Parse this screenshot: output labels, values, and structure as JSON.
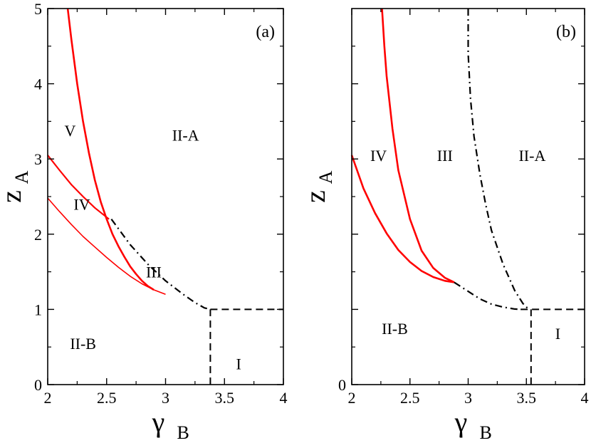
{
  "chart_data": [
    {
      "type": "line",
      "panel_label": "(a)",
      "xlabel": {
        "main": "γ",
        "sub": "B"
      },
      "ylabel": {
        "main": "z",
        "sub": "A"
      },
      "xlim": [
        2,
        4
      ],
      "ylim": [
        0,
        5
      ],
      "x_ticks": [
        2,
        2.5,
        3,
        3.5,
        4
      ],
      "x_tick_labels": [
        "2",
        "2.5",
        "3",
        "3.5",
        "4"
      ],
      "y_ticks": [
        0,
        1,
        2,
        3,
        4,
        5
      ],
      "y_tick_labels": [
        "0",
        "1",
        "2",
        "3",
        "4",
        "5"
      ],
      "grid": false,
      "legend": "none",
      "series": [
        {
          "style": "solid",
          "color": "#ff0000",
          "width": 2.6,
          "points": [
            [
              2.17,
              5.0
            ],
            [
              2.2,
              4.6
            ],
            [
              2.25,
              4.0
            ],
            [
              2.3,
              3.5
            ],
            [
              2.35,
              3.08
            ],
            [
              2.4,
              2.72
            ],
            [
              2.45,
              2.43
            ],
            [
              2.5,
              2.2
            ],
            [
              2.55,
              2.0
            ],
            [
              2.6,
              1.84
            ],
            [
              2.65,
              1.7
            ],
            [
              2.7,
              1.57
            ],
            [
              2.75,
              1.47
            ],
            [
              2.8,
              1.38
            ],
            [
              2.85,
              1.31
            ],
            [
              2.9,
              1.26
            ]
          ]
        },
        {
          "style": "solid",
          "color": "#ff0000",
          "width": 2.2,
          "points": [
            [
              2.0,
              3.05
            ],
            [
              2.1,
              2.85
            ],
            [
              2.2,
              2.66
            ],
            [
              2.3,
              2.5
            ],
            [
              2.4,
              2.35
            ],
            [
              2.52,
              2.2
            ]
          ]
        },
        {
          "style": "solid",
          "color": "#ff0000",
          "width": 1.6,
          "points": [
            [
              2.0,
              2.48
            ],
            [
              2.1,
              2.3
            ],
            [
              2.2,
              2.13
            ],
            [
              2.3,
              1.97
            ],
            [
              2.4,
              1.83
            ],
            [
              2.5,
              1.69
            ],
            [
              2.6,
              1.56
            ],
            [
              2.7,
              1.44
            ],
            [
              2.8,
              1.34
            ],
            [
              2.9,
              1.26
            ],
            [
              3.0,
              1.2
            ]
          ]
        },
        {
          "style": "dashdot",
          "color": "#000000",
          "width": 2.2,
          "points": [
            [
              2.54,
              2.2
            ],
            [
              2.7,
              1.86
            ],
            [
              2.85,
              1.6
            ],
            [
              3.0,
              1.38
            ],
            [
              3.15,
              1.2
            ],
            [
              3.25,
              1.09
            ],
            [
              3.33,
              1.02
            ],
            [
              3.38,
              1.0
            ]
          ]
        },
        {
          "style": "dashed",
          "color": "#000000",
          "width": 2.0,
          "points": [
            [
              3.38,
              1.0
            ],
            [
              4.0,
              1.0
            ]
          ]
        },
        {
          "style": "dashed",
          "color": "#000000",
          "width": 2.0,
          "points": [
            [
              3.38,
              0.0
            ],
            [
              3.38,
              1.0
            ]
          ]
        }
      ],
      "annotations": [
        {
          "text": "V",
          "x": 2.19,
          "y": 3.38
        },
        {
          "text": "II-A",
          "x": 3.17,
          "y": 3.32
        },
        {
          "text": "IV",
          "x": 2.29,
          "y": 2.4
        },
        {
          "text": "III",
          "x": 2.9,
          "y": 1.5
        },
        {
          "text": "II-B",
          "x": 2.3,
          "y": 0.55
        },
        {
          "text": "I",
          "x": 3.62,
          "y": 0.28
        }
      ]
    },
    {
      "type": "line",
      "panel_label": "(b)",
      "xlabel": {
        "main": "γ",
        "sub": "B"
      },
      "ylabel": {
        "main": "z",
        "sub": "A"
      },
      "xlim": [
        2,
        4
      ],
      "ylim": [
        0,
        5
      ],
      "x_ticks": [
        2,
        2.5,
        3,
        3.5,
        4
      ],
      "x_tick_labels": [
        "2",
        "2.5",
        "3",
        "3.5",
        "4"
      ],
      "y_ticks": [
        0
      ],
      "y_tick_labels": [
        "0"
      ],
      "y_minor_ticks": [
        1,
        2,
        3,
        4
      ],
      "grid": false,
      "legend": "none",
      "series": [
        {
          "style": "solid",
          "color": "#ff0000",
          "width": 2.6,
          "points": [
            [
              2.26,
              5.0
            ],
            [
              2.28,
              4.5
            ],
            [
              2.3,
              4.1
            ],
            [
              2.35,
              3.4
            ],
            [
              2.4,
              2.85
            ],
            [
              2.5,
              2.2
            ],
            [
              2.6,
              1.78
            ],
            [
              2.7,
              1.55
            ],
            [
              2.8,
              1.42
            ],
            [
              2.88,
              1.36
            ]
          ]
        },
        {
          "style": "solid",
          "color": "#ff0000",
          "width": 2.6,
          "points": [
            [
              2.0,
              3.05
            ],
            [
              2.1,
              2.61
            ],
            [
              2.2,
              2.28
            ],
            [
              2.3,
              2.01
            ],
            [
              2.4,
              1.79
            ],
            [
              2.5,
              1.63
            ],
            [
              2.6,
              1.51
            ],
            [
              2.7,
              1.43
            ],
            [
              2.8,
              1.38
            ],
            [
              2.88,
              1.36
            ]
          ]
        },
        {
          "style": "dashdot",
          "color": "#000000",
          "width": 2.2,
          "points": [
            [
              3.0,
              5.0
            ],
            [
              3.0,
              4.4
            ],
            [
              3.02,
              3.8
            ],
            [
              3.05,
              3.3
            ],
            [
              3.1,
              2.8
            ],
            [
              3.15,
              2.4
            ],
            [
              3.2,
              2.05
            ],
            [
              3.3,
              1.6
            ],
            [
              3.4,
              1.25
            ],
            [
              3.47,
              1.08
            ],
            [
              3.52,
              1.0
            ]
          ]
        },
        {
          "style": "dashdot",
          "color": "#000000",
          "width": 2.2,
          "points": [
            [
              2.88,
              1.36
            ],
            [
              3.0,
              1.24
            ],
            [
              3.1,
              1.14
            ],
            [
              3.2,
              1.07
            ],
            [
              3.3,
              1.03
            ],
            [
              3.4,
              1.005
            ],
            [
              3.45,
              1.0
            ]
          ]
        },
        {
          "style": "dashed",
          "color": "#000000",
          "width": 2.0,
          "points": [
            [
              3.45,
              1.0
            ],
            [
              4.0,
              1.0
            ]
          ]
        },
        {
          "style": "dashed",
          "color": "#000000",
          "width": 2.0,
          "points": [
            [
              3.54,
              0.0
            ],
            [
              3.54,
              1.0
            ]
          ]
        }
      ],
      "annotations": [
        {
          "text": "IV",
          "x": 2.23,
          "y": 3.05
        },
        {
          "text": "III",
          "x": 2.8,
          "y": 3.05
        },
        {
          "text": "II-A",
          "x": 3.55,
          "y": 3.05
        },
        {
          "text": "II-B",
          "x": 2.37,
          "y": 0.75
        },
        {
          "text": "I",
          "x": 3.77,
          "y": 0.68
        }
      ]
    }
  ]
}
